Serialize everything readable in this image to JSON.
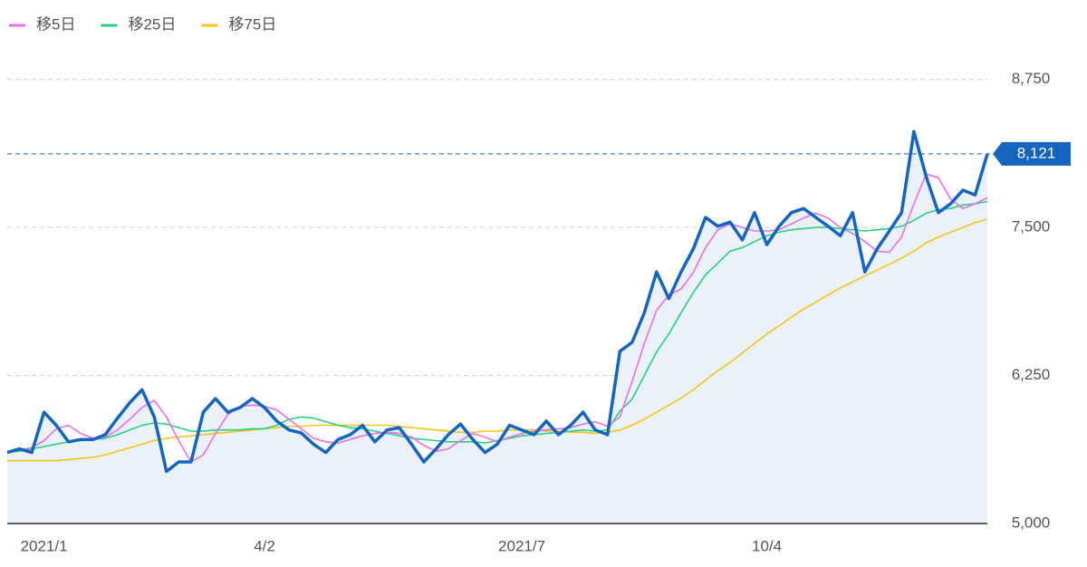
{
  "chart_data": {
    "type": "line",
    "categories": [
      null,
      null,
      null,
      "2021/1",
      null,
      null,
      null,
      null,
      null,
      null,
      null,
      null,
      null,
      null,
      null,
      null,
      null,
      null,
      null,
      null,
      null,
      "4/2",
      null,
      null,
      null,
      null,
      null,
      null,
      null,
      null,
      null,
      null,
      null,
      null,
      null,
      null,
      null,
      null,
      null,
      null,
      null,
      null,
      "2021/7",
      null,
      null,
      null,
      null,
      null,
      null,
      null,
      null,
      null,
      null,
      null,
      null,
      null,
      null,
      null,
      null,
      null,
      null,
      null,
      "10/4",
      null,
      null,
      null,
      null,
      null,
      null,
      null,
      null,
      null,
      null,
      null,
      null,
      null,
      null,
      null,
      null,
      null,
      null
    ],
    "series": [
      {
        "color": "#1565c0",
        "area_color": "#eaf1f9",
        "values": [
          5600,
          5630,
          5600,
          5940,
          5830,
          5690,
          5710,
          5710,
          5750,
          5890,
          6020,
          6130,
          5900,
          5440,
          5520,
          5520,
          5940,
          6055,
          5940,
          5980,
          6055,
          5980,
          5865,
          5790,
          5765,
          5670,
          5600,
          5710,
          5750,
          5830,
          5690,
          5790,
          5810,
          5670,
          5520,
          5630,
          5750,
          5840,
          5710,
          5600,
          5670,
          5830,
          5790,
          5750,
          5865,
          5750,
          5830,
          5940,
          5790,
          5750,
          6455,
          6530,
          6780,
          7125,
          6900,
          7125,
          7320,
          7585,
          7510,
          7545,
          7395,
          7625,
          7355,
          7510,
          7625,
          7660,
          7585,
          7510,
          7430,
          7625,
          7125,
          7320,
          7470,
          7625,
          8310,
          7930,
          7625,
          7700,
          7815,
          7775,
          8121
        ]
      },
      {
        "name": "移5日",
        "color": "#e86fe8",
        "values": [
          5600,
          5620,
          5640,
          5700,
          5800,
          5830,
          5760,
          5720,
          5730,
          5790,
          5880,
          5980,
          6040,
          5900,
          5700,
          5520,
          5580,
          5760,
          5920,
          5990,
          6000,
          5990,
          5960,
          5880,
          5800,
          5720,
          5690,
          5680,
          5710,
          5740,
          5760,
          5770,
          5760,
          5730,
          5660,
          5610,
          5630,
          5700,
          5760,
          5730,
          5690,
          5730,
          5760,
          5780,
          5790,
          5800,
          5810,
          5840,
          5860,
          5820,
          5900,
          6200,
          6520,
          6800,
          6930,
          6980,
          7120,
          7330,
          7480,
          7530,
          7500,
          7470,
          7470,
          7480,
          7530,
          7580,
          7620,
          7580,
          7500,
          7450,
          7380,
          7300,
          7290,
          7420,
          7700,
          7950,
          7920,
          7740,
          7660,
          7700,
          7750
        ]
      },
      {
        "name": "移25日",
        "color": "#27d17f",
        "values": [
          5600,
          5610,
          5630,
          5650,
          5670,
          5690,
          5700,
          5710,
          5720,
          5750,
          5790,
          5830,
          5850,
          5840,
          5810,
          5780,
          5780,
          5790,
          5790,
          5790,
          5800,
          5800,
          5830,
          5880,
          5900,
          5890,
          5860,
          5830,
          5810,
          5800,
          5780,
          5760,
          5740,
          5720,
          5710,
          5700,
          5690,
          5690,
          5690,
          5680,
          5700,
          5720,
          5740,
          5750,
          5760,
          5770,
          5780,
          5790,
          5780,
          5790,
          5950,
          6050,
          6250,
          6450,
          6600,
          6780,
          6950,
          7100,
          7200,
          7300,
          7330,
          7380,
          7430,
          7460,
          7480,
          7490,
          7500,
          7500,
          7490,
          7480,
          7470,
          7480,
          7490,
          7510,
          7560,
          7620,
          7650,
          7660,
          7690,
          7700,
          7720
        ]
      },
      {
        "name": "移75日",
        "color": "#f5c518",
        "values": [
          5530,
          5530,
          5530,
          5530,
          5530,
          5540,
          5550,
          5560,
          5580,
          5610,
          5640,
          5670,
          5700,
          5720,
          5730,
          5740,
          5750,
          5760,
          5770,
          5780,
          5790,
          5800,
          5810,
          5820,
          5820,
          5830,
          5830,
          5830,
          5830,
          5830,
          5830,
          5830,
          5820,
          5810,
          5800,
          5790,
          5780,
          5770,
          5770,
          5780,
          5780,
          5790,
          5790,
          5790,
          5780,
          5780,
          5770,
          5770,
          5760,
          5770,
          5790,
          5830,
          5880,
          5940,
          6000,
          6060,
          6130,
          6210,
          6290,
          6360,
          6440,
          6520,
          6600,
          6670,
          6740,
          6810,
          6870,
          6930,
          6990,
          7040,
          7090,
          7140,
          7190,
          7240,
          7300,
          7370,
          7420,
          7460,
          7500,
          7540,
          7570
        ]
      }
    ],
    "current_price": {
      "value": 8121,
      "label": "8,121"
    },
    "ylim": [
      5000,
      9000
    ],
    "yticks": [
      {
        "value": 5000,
        "label": "5,000"
      },
      {
        "value": 6250,
        "label": "6,250"
      },
      {
        "value": 7500,
        "label": "7,500"
      },
      {
        "value": 8750,
        "label": "8,750"
      }
    ],
    "grid": true
  }
}
